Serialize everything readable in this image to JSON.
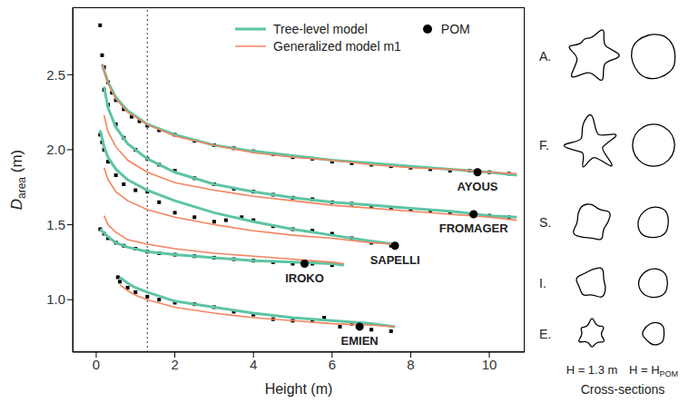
{
  "chart_data": {
    "type": "line",
    "xlabel": "Height (m)",
    "ylabel": {
      "text": "D",
      "subscript": "area",
      "suffix": " (m)"
    },
    "xlim": [
      -0.6,
      10.9
    ],
    "xticks": [
      0,
      2,
      4,
      6,
      8,
      10
    ],
    "ylim": [
      0.65,
      2.95
    ],
    "yticks": [
      {
        "value": 1,
        "label": "1.0"
      },
      1.5,
      {
        "value": 2,
        "label": "2.0"
      },
      2.5
    ],
    "grid": false,
    "legend": "top",
    "reference_x": 1.3,
    "species": [
      "AYOUS",
      "FROMAGER",
      "SAPELLI",
      "IROKO",
      "EMIEN"
    ],
    "observed": {
      "type": "scatter",
      "marker": "square",
      "color": "#000000",
      "groups": [
        {
          "x": [
            0.1,
            0.15,
            0.2,
            0.3,
            0.4,
            0.5,
            0.7,
            0.9,
            1.1,
            1.3,
            1.6,
            2,
            2.5,
            3,
            3.5,
            4,
            4.5,
            5,
            5.5,
            6,
            6.5,
            7,
            7.5,
            8,
            8.5,
            9,
            9.5,
            10,
            10.5
          ],
          "values": [
            2.83,
            2.63,
            2.55,
            2.45,
            2.38,
            2.33,
            2.27,
            2.22,
            2.19,
            2.16,
            2.13,
            2.1,
            2.06,
            2.03,
            2.01,
            1.99,
            1.97,
            1.95,
            1.94,
            1.92,
            1.91,
            1.9,
            1.89,
            1.88,
            1.87,
            1.86,
            1.86,
            1.85,
            1.84
          ]
        },
        {
          "x": [
            0.2,
            0.3,
            0.5,
            0.7,
            1,
            1.3,
            1.6,
            2,
            2.5,
            3,
            3.5,
            4,
            4.5,
            5,
            5.5,
            6,
            6.5,
            7,
            7.5,
            8,
            8.5,
            9,
            9.5,
            10,
            10.5
          ],
          "values": [
            2.4,
            2.3,
            2.17,
            2.08,
            2,
            1.94,
            1.9,
            1.86,
            1.81,
            1.77,
            1.74,
            1.72,
            1.7,
            1.68,
            1.67,
            1.65,
            1.64,
            1.62,
            1.61,
            1.6,
            1.59,
            1.58,
            1.57,
            1.56,
            1.55
          ]
        },
        {
          "x": [
            0.1,
            0.15,
            0.2,
            0.3,
            0.5,
            0.7,
            1,
            1.3,
            1.6,
            2,
            2.5,
            3,
            3.3,
            3.7,
            4,
            4.5,
            5,
            5.5,
            6,
            6.5,
            7,
            7.5
          ],
          "values": [
            2.1,
            2.05,
            2,
            1.92,
            1.83,
            1.77,
            1.73,
            1.72,
            1.65,
            1.58,
            1.55,
            1.52,
            1.53,
            1.55,
            1.53,
            1.49,
            1.47,
            1.46,
            1.44,
            1.41,
            1.38,
            1.36
          ]
        },
        {
          "x": [
            0.1,
            0.2,
            0.3,
            0.5,
            0.7,
            1,
            1.3,
            1.6,
            2,
            2.5,
            3,
            3.5,
            4,
            4.5,
            5,
            5.5,
            6
          ],
          "values": [
            1.47,
            1.44,
            1.41,
            1.38,
            1.36,
            1.34,
            1.32,
            1.31,
            1.3,
            1.29,
            1.28,
            1.27,
            1.26,
            1.25,
            1.24,
            1.24,
            1.23
          ]
        },
        {
          "x": [
            0.55,
            0.6,
            0.8,
            1,
            1.3,
            1.6,
            2,
            2.5,
            3,
            3.5,
            4,
            4.5,
            5,
            5.5,
            5.8,
            6.2,
            6.5,
            7,
            7.5
          ],
          "values": [
            1.15,
            1.12,
            1.08,
            1.05,
            1.02,
            1,
            0.98,
            0.97,
            0.95,
            0.92,
            0.9,
            0.87,
            0.86,
            0.86,
            0.88,
            0.82,
            0.84,
            0.8,
            0.79
          ]
        }
      ]
    },
    "series": [
      {
        "name": "Tree-level model",
        "type": "line",
        "color": "#5ec4a4",
        "groups": [
          {
            "x": [
              0.15,
              0.3,
              0.5,
              0.8,
              1.3,
              2,
              3,
              4,
              5,
              6,
              7,
              8,
              9,
              10,
              10.7
            ],
            "values": [
              2.57,
              2.45,
              2.35,
              2.26,
              2.17,
              2.1,
              2.03,
              1.99,
              1.96,
              1.93,
              1.91,
              1.89,
              1.87,
              1.85,
              1.83
            ]
          },
          {
            "x": [
              0.2,
              0.3,
              0.5,
              0.8,
              1.3,
              2,
              3,
              4,
              5,
              6,
              7,
              8,
              9,
              10,
              10.7
            ],
            "values": [
              2.42,
              2.28,
              2.15,
              2.04,
              1.94,
              1.85,
              1.77,
              1.72,
              1.68,
              1.65,
              1.63,
              1.61,
              1.59,
              1.56,
              1.55
            ]
          },
          {
            "x": [
              0.1,
              0.2,
              0.3,
              0.5,
              0.8,
              1.3,
              2,
              3,
              4,
              5,
              6,
              7,
              7.6
            ],
            "values": [
              2.13,
              2.02,
              1.95,
              1.87,
              1.8,
              1.73,
              1.66,
              1.58,
              1.52,
              1.47,
              1.43,
              1.39,
              1.37
            ]
          },
          {
            "x": [
              0.1,
              0.3,
              0.5,
              0.8,
              1.3,
              2,
              3,
              4,
              5,
              6,
              6.3
            ],
            "values": [
              1.47,
              1.42,
              1.38,
              1.35,
              1.32,
              1.3,
              1.28,
              1.26,
              1.25,
              1.24,
              1.23
            ]
          },
          {
            "x": [
              0.6,
              0.8,
              1,
              1.3,
              2,
              3,
              4,
              5,
              6,
              7,
              7.6
            ],
            "values": [
              1.15,
              1.11,
              1.08,
              1.05,
              0.99,
              0.95,
              0.91,
              0.88,
              0.86,
              0.84,
              0.82
            ]
          }
        ]
      },
      {
        "name": "Generalized model m1",
        "type": "line",
        "color": "#f4845f",
        "groups": [
          {
            "x": [
              0.15,
              0.3,
              0.5,
              0.8,
              1.3,
              2,
              3,
              4,
              5,
              6,
              7,
              8,
              9,
              10,
              10.7
            ],
            "values": [
              2.57,
              2.44,
              2.34,
              2.25,
              2.17,
              2.09,
              2.03,
              1.98,
              1.95,
              1.93,
              1.9,
              1.88,
              1.87,
              1.85,
              1.84
            ]
          },
          {
            "x": [
              0.2,
              0.3,
              0.5,
              0.8,
              1.3,
              2,
              3,
              4,
              5,
              6,
              7,
              8,
              9,
              10,
              10.7
            ],
            "values": [
              2.23,
              2.12,
              2.02,
              1.93,
              1.85,
              1.78,
              1.73,
              1.69,
              1.66,
              1.63,
              1.61,
              1.59,
              1.57,
              1.55,
              1.53
            ]
          },
          {
            "x": [
              0.2,
              0.3,
              0.5,
              0.8,
              1.3,
              2,
              3,
              4,
              5,
              6,
              7,
              7.6
            ],
            "values": [
              1.88,
              1.8,
              1.72,
              1.66,
              1.6,
              1.55,
              1.5,
              1.46,
              1.43,
              1.41,
              1.38,
              1.37
            ]
          },
          {
            "x": [
              0.2,
              0.3,
              0.5,
              0.8,
              1.3,
              2,
              3,
              4,
              5,
              6,
              6.3
            ],
            "values": [
              1.56,
              1.5,
              1.45,
              1.4,
              1.37,
              1.34,
              1.31,
              1.29,
              1.27,
              1.25,
              1.24
            ]
          },
          {
            "x": [
              0.6,
              0.8,
              1,
              1.3,
              2,
              3,
              4,
              5,
              6,
              7,
              7.6
            ],
            "values": [
              1.1,
              1.06,
              1.03,
              1,
              0.95,
              0.91,
              0.88,
              0.86,
              0.84,
              0.83,
              0.82
            ]
          }
        ]
      },
      {
        "name": "POM",
        "type": "scatter",
        "marker": "circle",
        "color": "#000000",
        "x": [
          9.7,
          9.6,
          7.6,
          5.3,
          6.7
        ],
        "values": [
          1.85,
          1.57,
          1.36,
          1.24,
          0.82
        ]
      }
    ]
  },
  "cross_sections": {
    "rows": [
      "A.",
      "F.",
      "S.",
      "I.",
      "E."
    ],
    "columns": [
      {
        "text": "H = 1.3 m"
      },
      {
        "text": "H = H",
        "subscript": "POM"
      }
    ],
    "title": "Cross-sections"
  }
}
